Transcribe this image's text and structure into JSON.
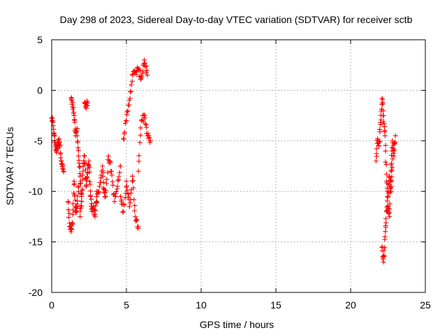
{
  "chart_data": {
    "type": "scatter",
    "title": "Day 298 of 2023, Sidereal Day-to-day VTEC variation (SDTVAR) for receiver sctb",
    "xlabel": "GPS time / hours",
    "ylabel": "SDTVAR / TECUs",
    "xlim": [
      0,
      25
    ],
    "ylim": [
      -20,
      5
    ],
    "xticks": [
      0,
      5,
      10,
      15,
      20,
      25
    ],
    "yticks": [
      5,
      0,
      -5,
      -10,
      -15,
      -20
    ],
    "grid": true,
    "marker": "+",
    "color": "#ff0000",
    "segments": [
      {
        "x": [
          0.0,
          0.1,
          0.2,
          0.3,
          0.4,
          0.5,
          0.6,
          0.7,
          0.8
        ],
        "y": [
          -2.8,
          -3.5,
          -5.0,
          -6.0,
          -5.5,
          -4.8,
          -6.2,
          -7.5,
          -8.0
        ]
      },
      {
        "x": [
          1.1,
          1.2,
          1.3,
          1.4,
          1.5,
          1.6,
          1.7,
          1.8
        ],
        "y": [
          -11.0,
          -13.5,
          -14.0,
          -13.2,
          -9.0,
          -12.0,
          -11.5,
          -9.5
        ]
      },
      {
        "x": [
          1.3,
          1.4,
          1.5,
          1.6,
          1.7,
          1.8,
          1.9,
          2.0
        ],
        "y": [
          -0.8,
          -1.2,
          -2.5,
          -4.5,
          -3.8,
          -6.5,
          -8.5,
          -10.5
        ]
      },
      {
        "x": [
          1.9,
          2.0,
          2.1,
          2.2,
          2.3,
          2.4,
          2.5,
          2.6,
          2.7,
          2.8,
          2.9,
          3.0
        ],
        "y": [
          -12.5,
          -11.0,
          -8.0,
          -6.5,
          -9.5,
          -8.2,
          -7.0,
          -10.5,
          -12.0,
          -11.5,
          -12.5,
          -10.0
        ]
      },
      {
        "x": [
          2.2,
          2.3,
          2.4
        ],
        "y": [
          -1.2,
          -1.5,
          -1.3
        ]
      },
      {
        "x": [
          3.0,
          3.2,
          3.4,
          3.5,
          3.6,
          3.8,
          4.0,
          4.2,
          4.4,
          4.6
        ],
        "y": [
          -11.0,
          -9.5,
          -7.5,
          -9.8,
          -10.5,
          -6.5,
          -8.0,
          -11.0,
          -9.5,
          -7.5
        ]
      },
      {
        "x": [
          4.6,
          4.8,
          5.0,
          5.2,
          5.4,
          5.6,
          5.8
        ],
        "y": [
          -10.5,
          -12.0,
          -9.0,
          -11.5,
          -8.5,
          -12.5,
          -13.5
        ]
      },
      {
        "x": [
          4.8,
          5.0,
          5.2,
          5.4,
          5.6,
          5.8,
          6.0,
          6.2,
          6.4
        ],
        "y": [
          -4.8,
          -3.0,
          -1.0,
          1.5,
          1.8,
          2.0,
          1.2,
          3.0,
          1.5
        ]
      },
      {
        "x": [
          5.8,
          6.0,
          6.2,
          6.4,
          6.6
        ],
        "y": [
          -8.0,
          -3.0,
          -2.5,
          -4.5,
          -5.0
        ]
      },
      {
        "x": [
          21.7,
          21.8,
          21.9,
          22.0,
          22.1,
          22.2,
          22.3,
          22.4,
          22.5,
          22.6,
          22.7,
          22.8,
          22.9,
          23.0
        ],
        "y": [
          -7.0,
          -4.8,
          -5.5,
          -3.2,
          -0.8,
          -2.5,
          -4.5,
          -9.0,
          -11.5,
          -12.5,
          -8.0,
          -5.0,
          -6.5,
          -4.5
        ]
      },
      {
        "x": [
          22.1,
          22.2,
          22.3,
          22.4,
          22.5,
          22.6,
          22.7,
          22.8
        ],
        "y": [
          -15.5,
          -17.0,
          -14.5,
          -12.0,
          -10.5,
          -8.5,
          -10.0,
          -6.8
        ]
      }
    ]
  }
}
